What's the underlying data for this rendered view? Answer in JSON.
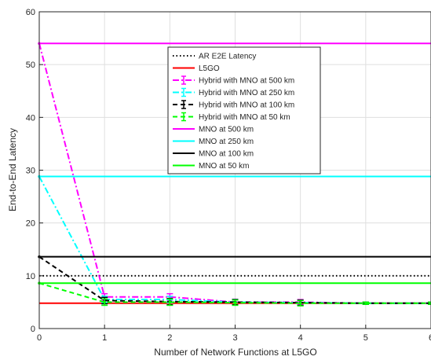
{
  "chart_data": {
    "type": "line",
    "xlabel": "Number of Network Functions at L5GO",
    "ylabel": "End-to-End Latency",
    "xlim": [
      0,
      6
    ],
    "ylim": [
      0,
      60
    ],
    "xticks": [
      "0",
      "1",
      "2",
      "3",
      "4",
      "5",
      "6"
    ],
    "yticks": [
      "0",
      "10",
      "20",
      "30",
      "40",
      "50",
      "60"
    ],
    "grid": true,
    "legend_position": "top-center",
    "series": [
      {
        "name": "AR E2E Latency",
        "color": "#000000",
        "style": "dotted",
        "x": [
          0,
          6
        ],
        "y": [
          10,
          10
        ]
      },
      {
        "name": "L5GO",
        "color": "#ff0000",
        "style": "solid",
        "x": [
          0,
          6
        ],
        "y": [
          4.8,
          4.8
        ]
      },
      {
        "name": "Hybrid with MNO at 500 km",
        "color": "#ff00ff",
        "style": "dashdot",
        "errorbars": true,
        "x": [
          0,
          1,
          2,
          3,
          4,
          5,
          6
        ],
        "y": [
          54,
          6,
          6,
          5,
          5,
          4.8,
          4.8
        ],
        "err": [
          0,
          0.6,
          0.6,
          0.5,
          0.5,
          0.2,
          0.2
        ]
      },
      {
        "name": "Hybrid with MNO at 250 km",
        "color": "#00ffff",
        "style": "dashdot",
        "errorbars": true,
        "x": [
          0,
          1,
          2,
          3,
          4,
          5,
          6
        ],
        "y": [
          28.8,
          5.5,
          5.5,
          5,
          4.9,
          4.8,
          4.8
        ],
        "err": [
          0,
          0.6,
          0.6,
          0.5,
          0.5,
          0.2,
          0.2
        ]
      },
      {
        "name": "Hybrid with MNO at 100 km",
        "color": "#000000",
        "style": "dashed",
        "errorbars": true,
        "x": [
          0,
          1,
          2,
          3,
          4,
          5,
          6
        ],
        "y": [
          13.6,
          5.3,
          5.1,
          5,
          4.9,
          4.8,
          4.8
        ],
        "err": [
          0,
          0.6,
          0.6,
          0.5,
          0.5,
          0.2,
          0.2
        ]
      },
      {
        "name": "Hybrid with MNO at 50 km",
        "color": "#00ff00",
        "style": "dashed",
        "errorbars": true,
        "x": [
          0,
          1,
          2,
          3,
          4,
          5,
          6
        ],
        "y": [
          8.6,
          5,
          5,
          4.9,
          4.8,
          4.8,
          4.8
        ],
        "err": [
          0,
          0.6,
          0.6,
          0.5,
          0.5,
          0.2,
          0.2
        ]
      },
      {
        "name": "MNO at 500 km",
        "color": "#ff00ff",
        "style": "solid",
        "x": [
          0,
          6
        ],
        "y": [
          54,
          54
        ]
      },
      {
        "name": "MNO at 250 km",
        "color": "#00ffff",
        "style": "solid",
        "x": [
          0,
          6
        ],
        "y": [
          28.8,
          28.8
        ]
      },
      {
        "name": "MNO at 100 km",
        "color": "#000000",
        "style": "solid",
        "x": [
          0,
          6
        ],
        "y": [
          13.6,
          13.6
        ]
      },
      {
        "name": "MNO at 50 km",
        "color": "#00ff00",
        "style": "solid",
        "x": [
          0,
          6
        ],
        "y": [
          8.6,
          8.6
        ]
      }
    ]
  }
}
